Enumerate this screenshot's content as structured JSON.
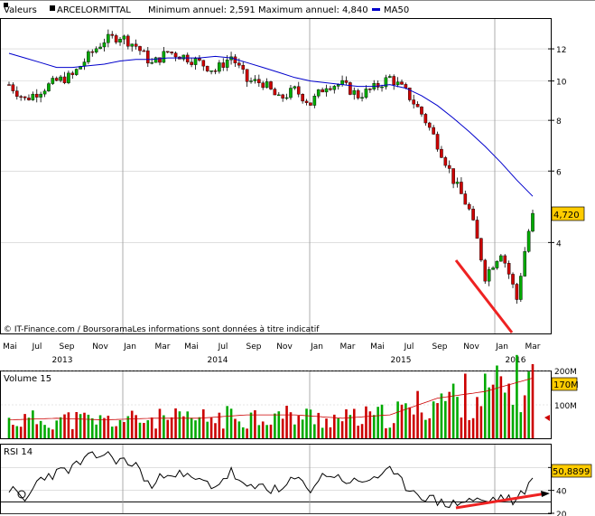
{
  "header": {
    "prefix": "Valeurs",
    "name": "ARCELORMITTAL",
    "minmax": "Minimum annuel: 2,591 Maximum annuel: 4,840",
    "ma_label": "MA50",
    "ma_color": "#0000cc"
  },
  "source_note": "© IT-Finance.com / BoursoramaLes informations sont données à titre indicatif",
  "price_badge": "4,720",
  "volume_badge": "170M",
  "rsi_badge": "50,8899",
  "volume_title": "Volume 15",
  "rsi_title": "RSI 14",
  "months": [
    "Mai",
    "Jul",
    "Sep",
    "Nov",
    "Jan",
    "Mar",
    "Mai",
    "Jul",
    "Sep",
    "Nov",
    "Jan",
    "Mar",
    "Mai",
    "Jul",
    "Sep",
    "Nov",
    "Jan",
    "Mar"
  ],
  "years": [
    "2013",
    "2014",
    "2015",
    "2016"
  ],
  "colors": {
    "up": "#00aa00",
    "down": "#cc0000",
    "ma": "#0000cc",
    "badge": "#ffcc00",
    "trend": "#ee2222"
  },
  "chart_data": [
    {
      "type": "candlestick",
      "title": "ARCELORMITTAL",
      "y_ticks": [
        4,
        6,
        8,
        10,
        12
      ],
      "ylim": [
        2.4,
        14
      ],
      "x": [
        "2013-05",
        "2013-06",
        "2013-07",
        "2013-08",
        "2013-09",
        "2013-10",
        "2013-11",
        "2013-12",
        "2014-01",
        "2014-02",
        "2014-03",
        "2014-04",
        "2014-05",
        "2014-06",
        "2014-07",
        "2014-08",
        "2014-09",
        "2014-10",
        "2014-11",
        "2014-12",
        "2015-01",
        "2015-02",
        "2015-03",
        "2015-04",
        "2015-05",
        "2015-06",
        "2015-07",
        "2015-08",
        "2015-09",
        "2015-10",
        "2015-11",
        "2015-12",
        "2016-01",
        "2016-02"
      ],
      "series": [
        {
          "name": "close",
          "values": [
            9.8,
            9.0,
            9.5,
            10.0,
            10.3,
            11.5,
            12.6,
            12.9,
            12.2,
            11.0,
            11.8,
            11.5,
            11.1,
            10.6,
            11.5,
            10.0,
            9.9,
            9.0,
            9.5,
            8.8,
            9.8,
            9.8,
            9.2,
            9.6,
            10.2,
            9.4,
            8.3,
            7.0,
            5.7,
            4.8,
            3.3,
            3.8,
            2.9,
            4.72
          ]
        },
        {
          "name": "MA50",
          "values": [
            11.7,
            11.4,
            11.1,
            10.8,
            10.8,
            10.9,
            11.0,
            11.2,
            11.3,
            11.3,
            11.4,
            11.4,
            11.4,
            11.5,
            11.4,
            11.1,
            10.8,
            10.5,
            10.2,
            10.0,
            9.9,
            9.8,
            9.7,
            9.7,
            9.8,
            9.6,
            9.2,
            8.7,
            8.1,
            7.5,
            6.9,
            6.3,
            5.7,
            5.2
          ]
        }
      ]
    },
    {
      "type": "bar",
      "title": "Volume 15",
      "y_ticks_text": [
        "100M",
        "200M"
      ],
      "x": [
        "2013-05",
        "2013-08",
        "2013-11",
        "2014-02",
        "2014-05",
        "2014-08",
        "2014-11",
        "2015-02",
        "2015-05",
        "2015-08",
        "2015-11",
        "2016-02"
      ],
      "values_m": [
        55,
        60,
        55,
        60,
        60,
        70,
        70,
        60,
        70,
        120,
        140,
        180
      ]
    },
    {
      "type": "line",
      "title": "RSI 14",
      "y_ticks": [
        20,
        40,
        60
      ],
      "ylim": [
        20,
        80
      ],
      "x": [
        "2013-05",
        "2013-06",
        "2013-07",
        "2013-08",
        "2013-09",
        "2013-10",
        "2013-11",
        "2013-12",
        "2014-01",
        "2014-02",
        "2014-03",
        "2014-04",
        "2014-05",
        "2014-06",
        "2014-07",
        "2014-08",
        "2014-09",
        "2014-10",
        "2014-11",
        "2014-12",
        "2015-01",
        "2015-02",
        "2015-03",
        "2015-04",
        "2015-05",
        "2015-06",
        "2015-07",
        "2015-08",
        "2015-09",
        "2015-10",
        "2015-11",
        "2015-12",
        "2016-01",
        "2016-02"
      ],
      "values": [
        42,
        30,
        52,
        55,
        60,
        68,
        72,
        66,
        62,
        42,
        58,
        52,
        48,
        44,
        56,
        40,
        45,
        38,
        50,
        42,
        55,
        50,
        46,
        52,
        56,
        44,
        36,
        30,
        28,
        32,
        30,
        34,
        30,
        50.8899
      ]
    }
  ]
}
